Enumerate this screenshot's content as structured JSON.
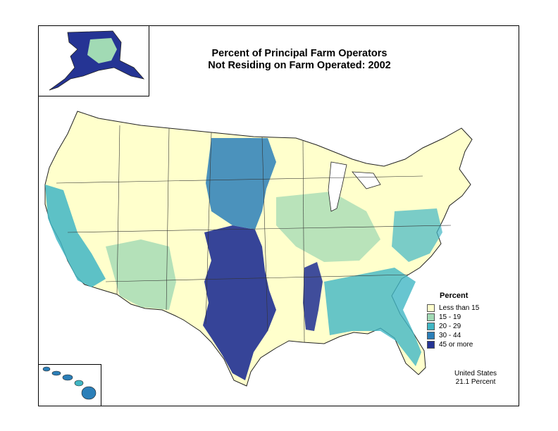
{
  "map": {
    "title_line1": "Percent of Principal Farm Operators",
    "title_line2": "Not Residing on Farm Operated:  2002",
    "legend": {
      "title": "Percent",
      "classes": [
        {
          "label": "Less than 15",
          "color": "#ffffcc"
        },
        {
          "label": "15 - 19",
          "color": "#a1dab4"
        },
        {
          "label": "20 - 29",
          "color": "#41b6c4"
        },
        {
          "label": "30 - 44",
          "color": "#2c7fb8"
        },
        {
          "label": "45 or more",
          "color": "#253494"
        }
      ]
    },
    "summary": {
      "line1": "United States",
      "line2": "21.1 Percent"
    },
    "regions": {
      "alaska": "Alaska",
      "hawaii": "Hawaii",
      "conus": "Contiguous United States"
    }
  }
}
